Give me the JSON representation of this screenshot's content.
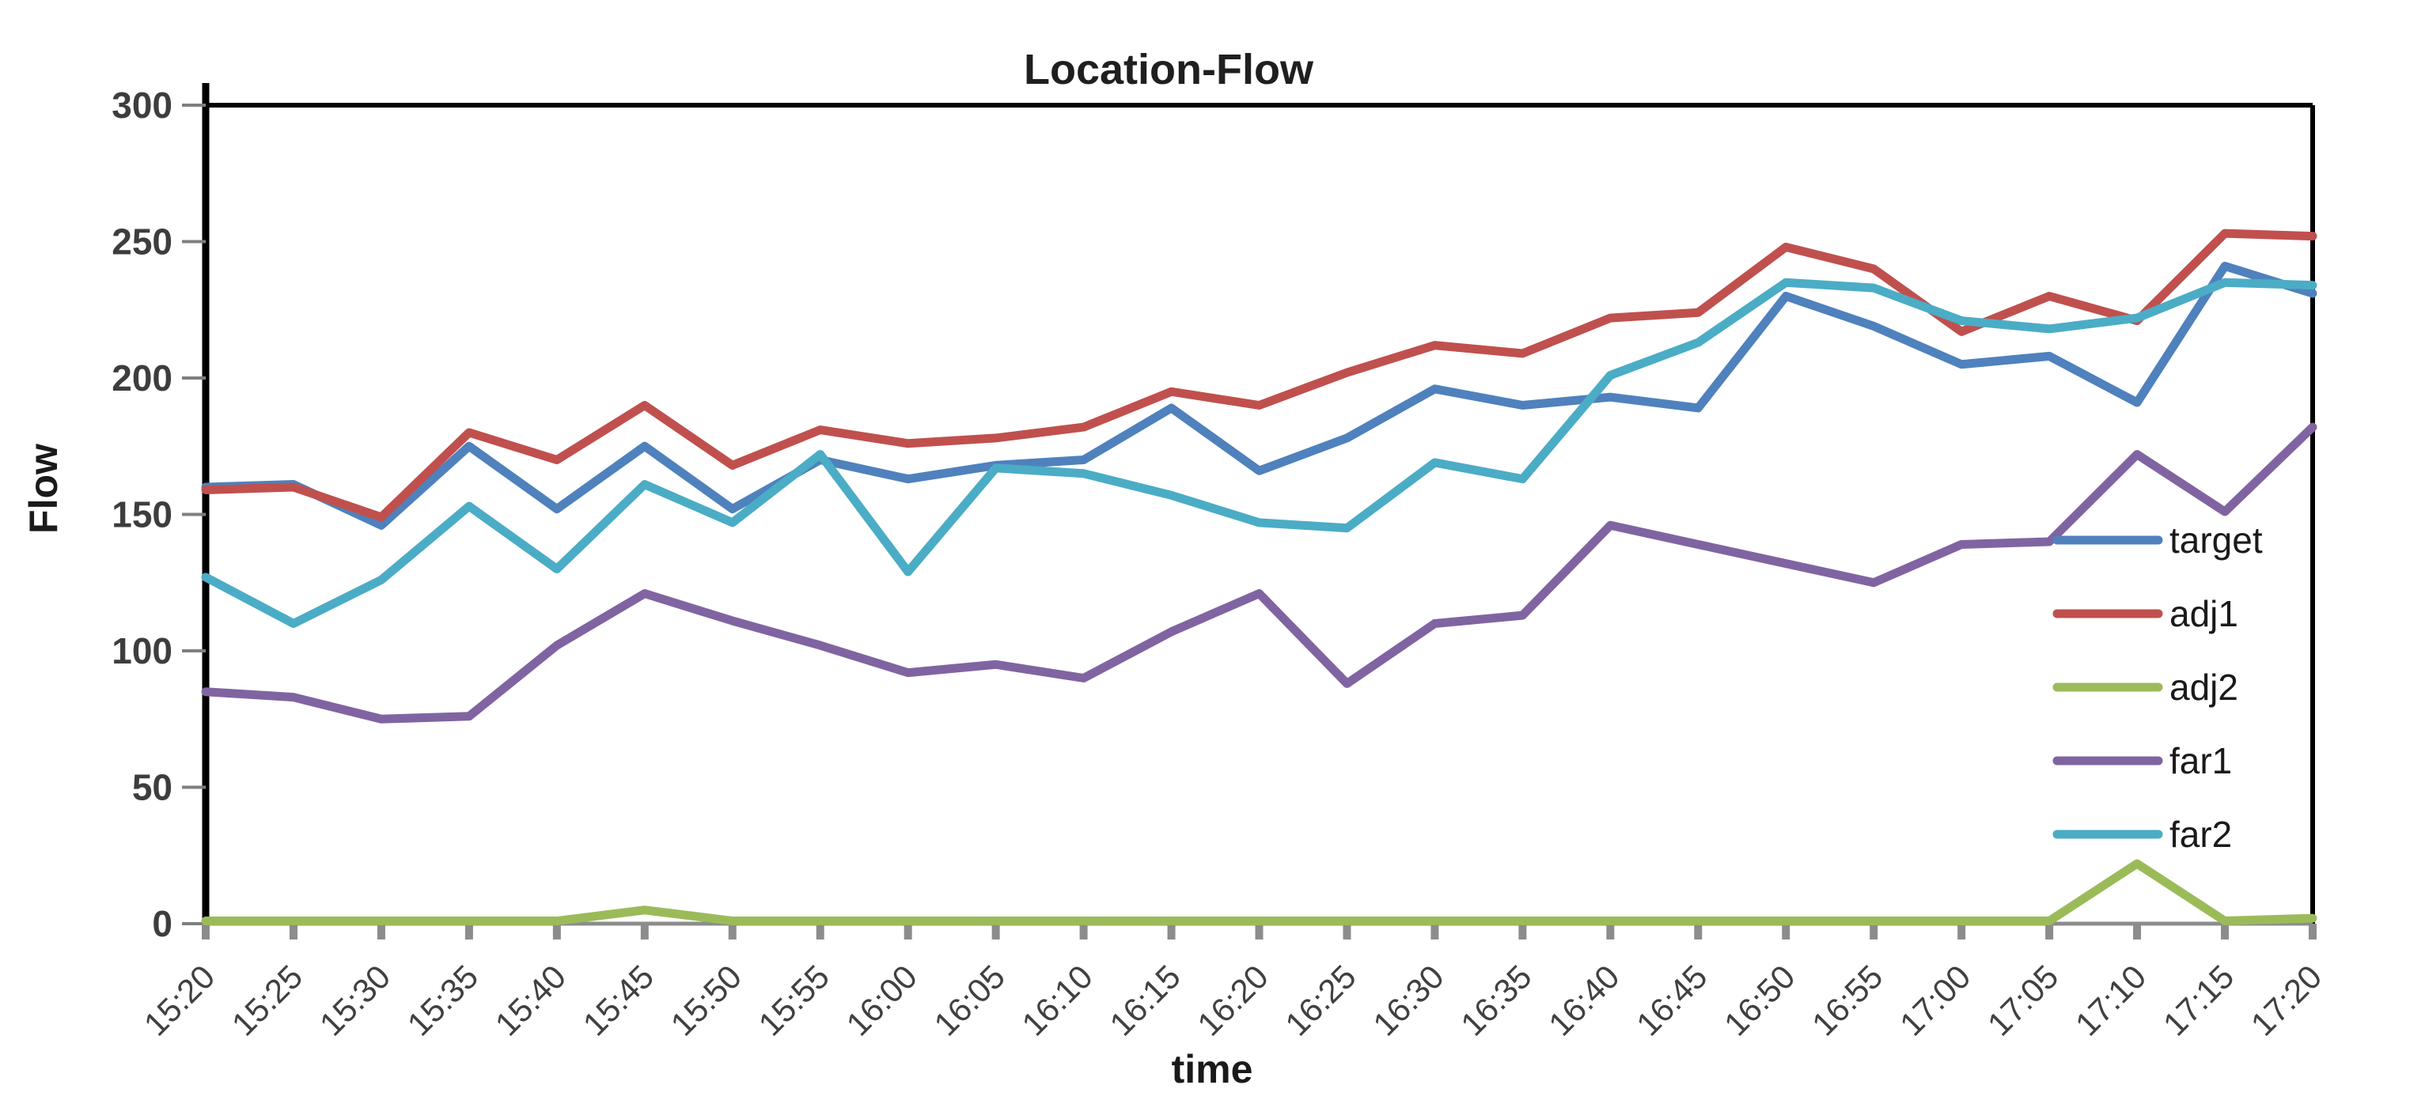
{
  "title": "Location-Flow",
  "chart_data": {
    "type": "line",
    "title": "Location-Flow",
    "xlabel": "time",
    "ylabel": "Flow",
    "ylim": [
      0,
      300
    ],
    "yticks": [
      0,
      50,
      100,
      150,
      200,
      250,
      300
    ],
    "grid": false,
    "legend_position": "inside-right",
    "categories": [
      "15:20",
      "15:25",
      "15:30",
      "15:35",
      "15:40",
      "15:45",
      "15:50",
      "15:55",
      "16:00",
      "16:05",
      "16:10",
      "16:15",
      "16:20",
      "16:25",
      "16:30",
      "16:35",
      "16:40",
      "16:45",
      "16:50",
      "16:55",
      "17:00",
      "17:05",
      "17:10",
      "17:15",
      "17:20"
    ],
    "series": [
      {
        "name": "target",
        "color": "#4F81BD",
        "values": [
          160,
          161,
          146,
          175,
          152,
          175,
          152,
          170,
          163,
          168,
          170,
          189,
          166,
          178,
          196,
          190,
          193,
          189,
          230,
          219,
          205,
          208,
          191,
          241,
          231
        ]
      },
      {
        "name": "adj1",
        "color": "#C0504D",
        "values": [
          159,
          160,
          149,
          180,
          170,
          190,
          168,
          181,
          176,
          178,
          182,
          195,
          190,
          202,
          212,
          209,
          222,
          224,
          248,
          240,
          217,
          230,
          221,
          253,
          252
        ]
      },
      {
        "name": "adj2",
        "color": "#9BBB59",
        "values": [
          1,
          1,
          1,
          1,
          1,
          5,
          1,
          1,
          1,
          1,
          1,
          1,
          1,
          1,
          1,
          1,
          1,
          1,
          1,
          1,
          1,
          1,
          22,
          1,
          2
        ]
      },
      {
        "name": "far1",
        "color": "#8064A2",
        "values": [
          85,
          83,
          75,
          76,
          102,
          121,
          111,
          102,
          92,
          95,
          90,
          107,
          121,
          88,
          110,
          113,
          146,
          139,
          132,
          125,
          139,
          140,
          172,
          151,
          182
        ]
      },
      {
        "name": "far2",
        "color": "#4BACC6",
        "values": [
          127,
          110,
          126,
          153,
          130,
          161,
          147,
          172,
          129,
          167,
          165,
          157,
          147,
          145,
          169,
          163,
          201,
          213,
          235,
          233,
          221,
          218,
          222,
          235,
          234
        ]
      }
    ]
  }
}
